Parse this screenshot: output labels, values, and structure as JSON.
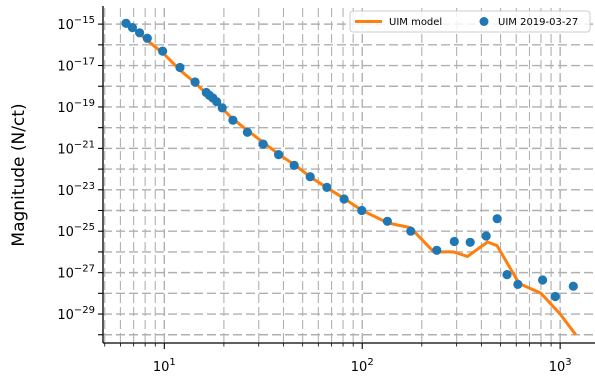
{
  "chart_data": {
    "type": "line",
    "title": "",
    "xlabel": "",
    "ylabel": "Magnitude (N/ct)",
    "xscale": "log",
    "yscale": "log",
    "xlim": [
      4.9,
      1500
    ],
    "ylim": [
      4e-31,
      6e-15
    ],
    "grid": true,
    "grid_style": "dashed",
    "legend_position": "top-right",
    "x_ticks": [
      {
        "value": 10,
        "base": "10",
        "exp": "1"
      },
      {
        "value": 100,
        "base": "10",
        "exp": "2"
      },
      {
        "value": 1000,
        "base": "10",
        "exp": "3"
      }
    ],
    "y_ticks": [
      {
        "value": 1e-15,
        "base": "10",
        "exp": "−15"
      },
      {
        "value": 1e-17,
        "base": "10",
        "exp": "−17"
      },
      {
        "value": 1e-19,
        "base": "10",
        "exp": "−19"
      },
      {
        "value": 1e-21,
        "base": "10",
        "exp": "−21"
      },
      {
        "value": 1e-23,
        "base": "10",
        "exp": "−23"
      },
      {
        "value": 1e-25,
        "base": "10",
        "exp": "−25"
      },
      {
        "value": 1e-27,
        "base": "10",
        "exp": "−27"
      },
      {
        "value": 1e-29,
        "base": "10",
        "exp": "−29"
      }
    ],
    "series": [
      {
        "name": "UIM model",
        "kind": "line",
        "color": "#ff7f0e",
        "x": [
          6.5,
          7.0,
          7.6,
          8.3,
          10.0,
          12.0,
          14.5,
          17.0,
          19.0,
          21.5,
          26.0,
          31.5,
          38.0,
          46.0,
          55.0,
          67.0,
          82.0,
          100.0,
          135.0,
          175.0,
          230.0,
          290.0,
          340.0,
          430.0,
          480.0,
          620.0,
          800.0,
          1000.0,
          1200.0
        ],
        "y": [
          1e-15,
          6e-16,
          3e-16,
          1.5e-16,
          3.5e-17,
          6e-18,
          1.3e-18,
          3e-19,
          1.2e-19,
          3.5e-20,
          8e-21,
          2e-21,
          5e-22,
          1.5e-22,
          4e-23,
          1.2e-23,
          3.5e-24,
          1e-24,
          2.5e-25,
          1.5e-25,
          1e-26,
          1e-26,
          6e-27,
          3e-26,
          2e-26,
          3e-28,
          1e-28,
          1e-29,
          1e-30
        ]
      },
      {
        "name": "UIM 2019-03-27",
        "kind": "scatter",
        "color": "#1f77b4",
        "x": [
          6.4,
          6.9,
          7.5,
          8.2,
          9.8,
          12.0,
          14.3,
          16.3,
          16.9,
          17.6,
          18.4,
          19.6,
          22.2,
          26.3,
          31.6,
          37.8,
          45.3,
          54.6,
          66.3,
          81.0,
          99.5,
          134,
          176,
          238,
          292,
          351,
          423,
          481,
          539,
          612,
          815,
          945,
          1165
        ],
        "y": [
          1.1e-15,
          6.8e-16,
          3.8e-16,
          2.1e-16,
          5e-17,
          8e-18,
          1.6e-18,
          5e-19,
          3.6e-19,
          2.7e-19,
          1.8e-19,
          9e-20,
          2.3e-20,
          6e-21,
          1.6e-21,
          5e-22,
          1.5e-22,
          4.3e-23,
          1.3e-23,
          3.6e-24,
          1e-24,
          3e-25,
          1e-25,
          1.2e-26,
          3.2e-26,
          2.9e-26,
          5.9e-26,
          4e-25,
          8e-28,
          2.7e-28,
          4.4e-28,
          7e-29,
          2.2e-28
        ]
      }
    ]
  }
}
